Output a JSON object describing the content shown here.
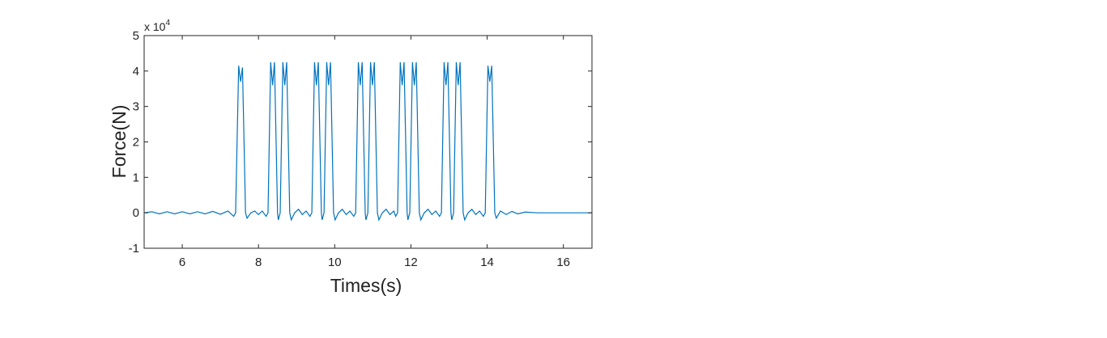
{
  "chart_data": {
    "type": "line",
    "xlabel": "Times(s)",
    "ylabel": "Force(N)",
    "y_multiplier": {
      "base": "x 10",
      "exponent": "4"
    },
    "xlim": [
      5,
      16.75
    ],
    "ylim": [
      -1,
      5
    ],
    "xticks": [
      6,
      8,
      10,
      12,
      14,
      16
    ],
    "yticks": [
      -1,
      0,
      1,
      2,
      3,
      4,
      5
    ],
    "series": [
      {
        "color": "#0072bd",
        "x": [
          5,
          5.2,
          5.4,
          5.6,
          5.8,
          6.0,
          6.2,
          6.4,
          6.6,
          6.8,
          7.0,
          7.2,
          7.35,
          7.4,
          7.48,
          7.53,
          7.58,
          7.66,
          7.7,
          7.8,
          7.9,
          8.0,
          8.1,
          8.2,
          8.25,
          8.32,
          8.37,
          8.42,
          8.5,
          8.52,
          8.57,
          8.64,
          8.69,
          8.74,
          8.82,
          8.86,
          8.95,
          9.05,
          9.15,
          9.25,
          9.35,
          9.4,
          9.47,
          9.52,
          9.57,
          9.65,
          9.67,
          9.72,
          9.79,
          9.84,
          9.89,
          9.97,
          10.01,
          10.1,
          10.2,
          10.3,
          10.4,
          10.5,
          10.55,
          10.62,
          10.67,
          10.72,
          10.8,
          10.82,
          10.87,
          10.94,
          10.99,
          11.04,
          11.12,
          11.16,
          11.25,
          11.35,
          11.45,
          11.55,
          11.6,
          11.65,
          11.72,
          11.77,
          11.82,
          11.9,
          11.92,
          11.97,
          12.04,
          12.09,
          12.14,
          12.22,
          12.26,
          12.35,
          12.45,
          12.55,
          12.65,
          12.75,
          12.8,
          12.87,
          12.92,
          12.97,
          13.05,
          13.07,
          13.12,
          13.19,
          13.24,
          13.29,
          13.37,
          13.41,
          13.5,
          13.6,
          13.7,
          13.8,
          13.9,
          13.95,
          14.02,
          14.07,
          14.12,
          14.2,
          14.24,
          14.35,
          14.5,
          14.65,
          14.8,
          15.0,
          15.3,
          16.75
        ],
        "values": [
          0,
          0.03,
          -0.03,
          0.03,
          -0.03,
          0.03,
          -0.03,
          0.03,
          -0.03,
          0.04,
          -0.04,
          0.05,
          -0.1,
          0,
          4.15,
          3.7,
          4.1,
          0,
          -0.15,
          0,
          0.05,
          -0.05,
          0.05,
          -0.1,
          0,
          4.25,
          3.6,
          4.25,
          0,
          -0.2,
          0,
          4.25,
          3.6,
          4.25,
          0,
          -0.2,
          0,
          0.1,
          -0.05,
          0.05,
          -0.1,
          0,
          4.25,
          3.6,
          4.25,
          0,
          -0.2,
          0,
          4.25,
          3.6,
          4.25,
          0,
          -0.2,
          0,
          0.1,
          -0.05,
          0.05,
          -0.1,
          0,
          4.25,
          3.6,
          4.25,
          0,
          -0.2,
          0,
          4.25,
          3.6,
          4.25,
          0,
          -0.2,
          0,
          0.1,
          -0.05,
          0.05,
          -0.1,
          0,
          4.25,
          3.6,
          4.25,
          0,
          -0.2,
          0,
          4.25,
          3.6,
          4.25,
          0,
          -0.2,
          0,
          0.1,
          -0.05,
          0.05,
          -0.1,
          0,
          4.25,
          3.6,
          4.25,
          0,
          -0.2,
          0,
          4.25,
          3.6,
          4.25,
          0,
          -0.2,
          0,
          0.1,
          -0.05,
          0.05,
          -0.1,
          0,
          4.15,
          3.7,
          4.15,
          0,
          -0.15,
          0.05,
          -0.05,
          0.04,
          -0.03,
          0.02,
          0,
          0
        ]
      }
    ]
  }
}
